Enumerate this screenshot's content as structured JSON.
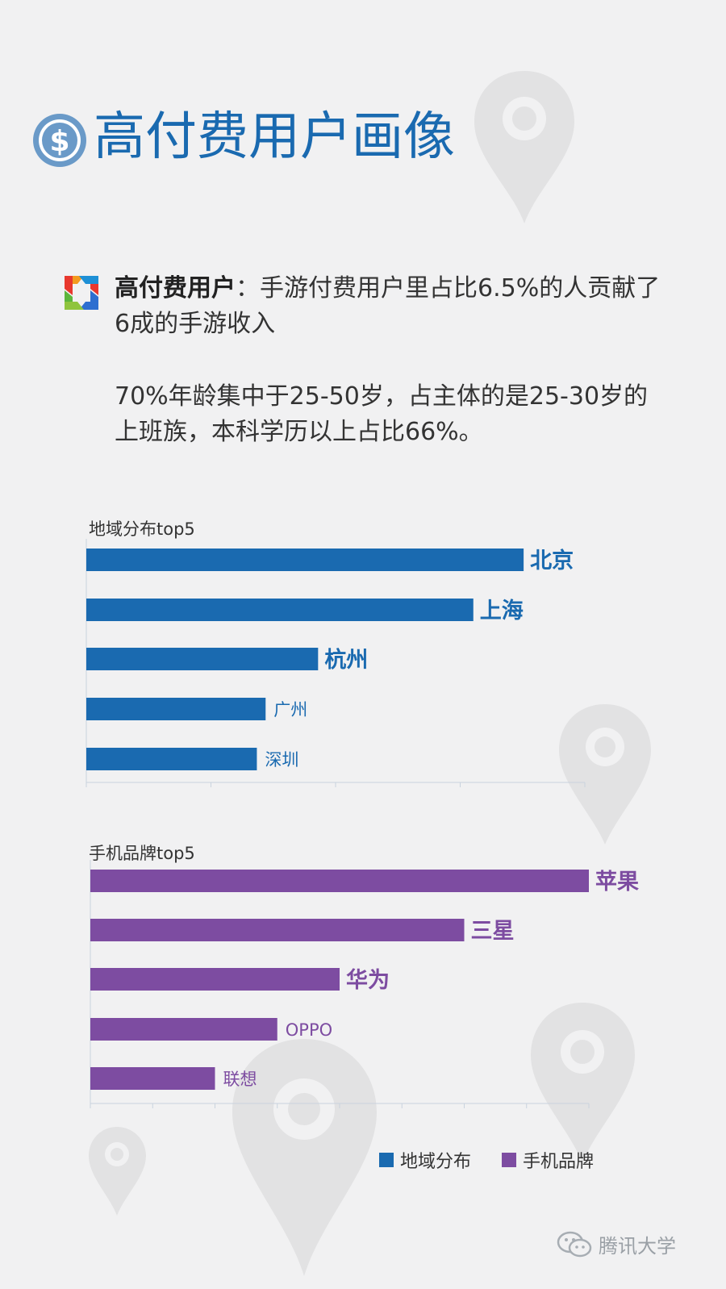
{
  "page_title": "高付费用户画像",
  "intro": {
    "lead": "高付费用户",
    "text": "：手游付费用户里占比6.5%的人贡献了6成的手游收入",
    "text2": "70%年龄集中于25-50岁，占主体的是25-30岁的上班族，本科学历以上占比66%。"
  },
  "colors": {
    "title_blue": "#1a6ab0",
    "region_bar": "#1a6ab0",
    "brand_bar": "#7d4ca1",
    "pin_gray": "#e2e2e3"
  },
  "icons": {
    "title": "dollar-coin-icon",
    "bullet": "colorful-pinwheel-icon",
    "watermark": "wechat-icon"
  },
  "chart_data": [
    {
      "type": "bar",
      "orientation": "horizontal",
      "title": "地域分布top5",
      "categories": [
        "北京",
        "上海",
        "杭州",
        "广州",
        "深圳"
      ],
      "values": [
        100,
        88.5,
        53,
        41,
        39
      ],
      "emphasized": [
        true,
        true,
        true,
        false,
        false
      ],
      "xlim": [
        0,
        114
      ],
      "legend_name": "地域分布"
    },
    {
      "type": "bar",
      "orientation": "horizontal",
      "title": "手机品牌top5",
      "categories": [
        "苹果",
        "三星",
        "华为",
        "OPPO",
        "联想"
      ],
      "values": [
        100,
        75,
        50,
        37.5,
        25
      ],
      "emphasized": [
        true,
        true,
        true,
        false,
        false
      ],
      "xlim": [
        0,
        100
      ],
      "legend_name": "手机品牌"
    }
  ],
  "legend": [
    {
      "label": "地域分布",
      "color": "#1a6ab0"
    },
    {
      "label": "手机品牌",
      "color": "#7d4ca1"
    }
  ],
  "watermark": "腾讯大学"
}
